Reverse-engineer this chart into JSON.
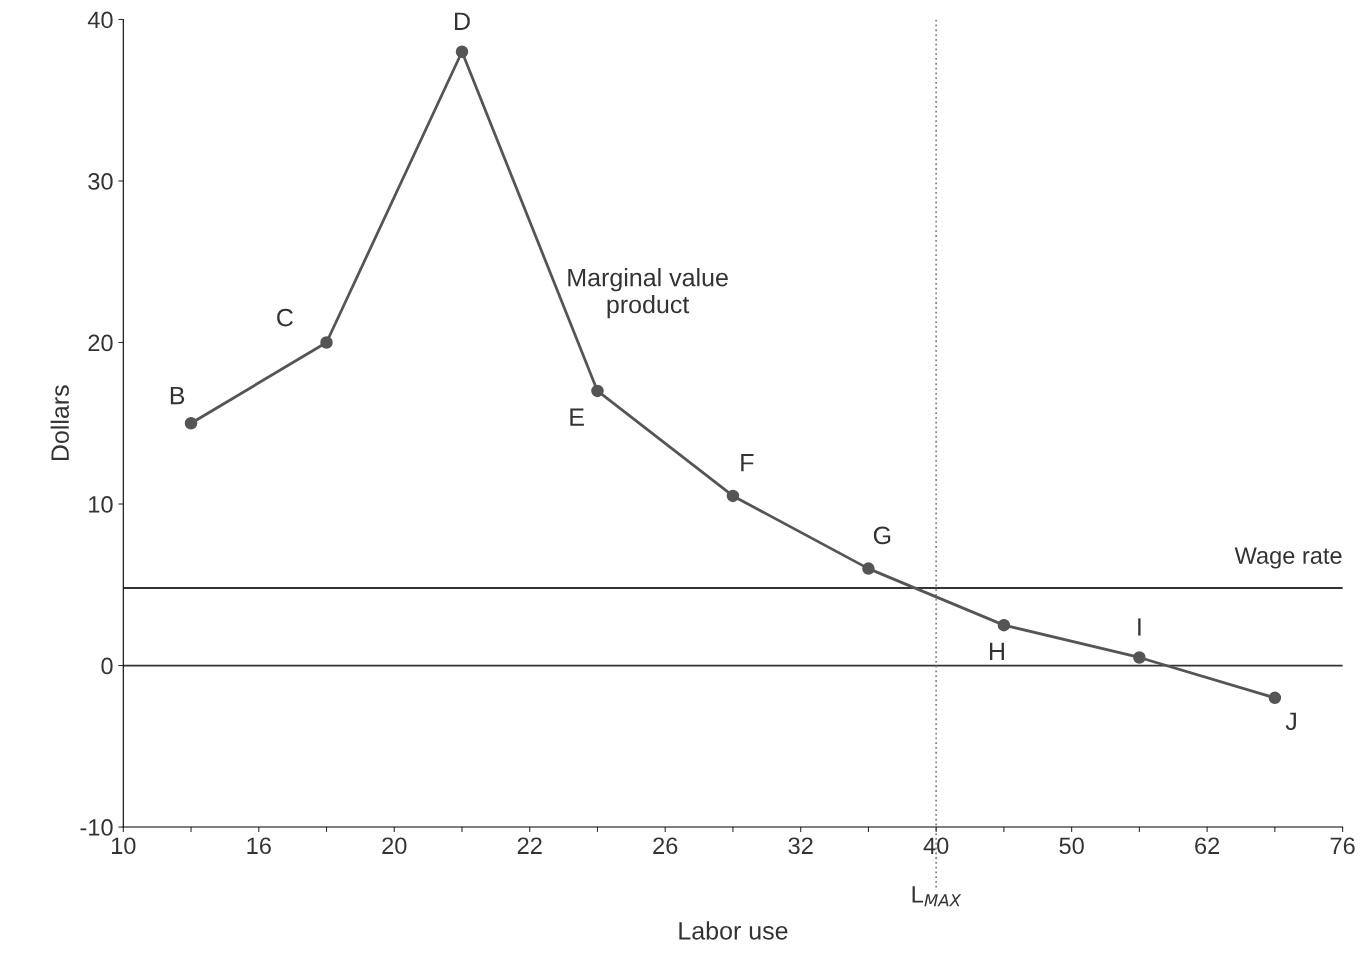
{
  "chart_data": {
    "type": "line",
    "xlabel": "Labor use",
    "ylabel": "Dollars",
    "categories": [
      "10",
      null,
      "16",
      null,
      "20",
      null,
      "22",
      null,
      "26",
      null,
      "32",
      null,
      "40",
      null,
      "50",
      null,
      "62",
      null,
      "76"
    ],
    "series": [
      {
        "color": "#555555",
        "values": [
          null,
          15,
          null,
          20,
          null,
          38,
          null,
          17,
          null,
          10.5,
          null,
          6,
          null,
          2.5,
          null,
          0.5,
          null,
          -2,
          null
        ]
      }
    ],
    "marker": "circle",
    "line_style": "solid",
    "grid": false,
    "legend": false,
    "ylim": [
      -10,
      40
    ],
    "yticks": [
      -10,
      0,
      10,
      20,
      30,
      40
    ],
    "ref_lines": [
      {
        "axis": "y",
        "value": 4.8,
        "label": "Wage rate",
        "color": "#333333",
        "line_style": "solid"
      },
      {
        "axis": "y",
        "value": 0,
        "label": null,
        "color": "#333333",
        "line_style": "solid"
      },
      {
        "axis": "x",
        "value": "40",
        "label": "L$_{MAX}$",
        "color": "#888888",
        "line_style": "dotted"
      }
    ],
    "annotations": [
      "B",
      "C",
      "D",
      "E",
      "F",
      "G",
      "H",
      "I",
      "J",
      "Marginal value\nproduct"
    ]
  }
}
